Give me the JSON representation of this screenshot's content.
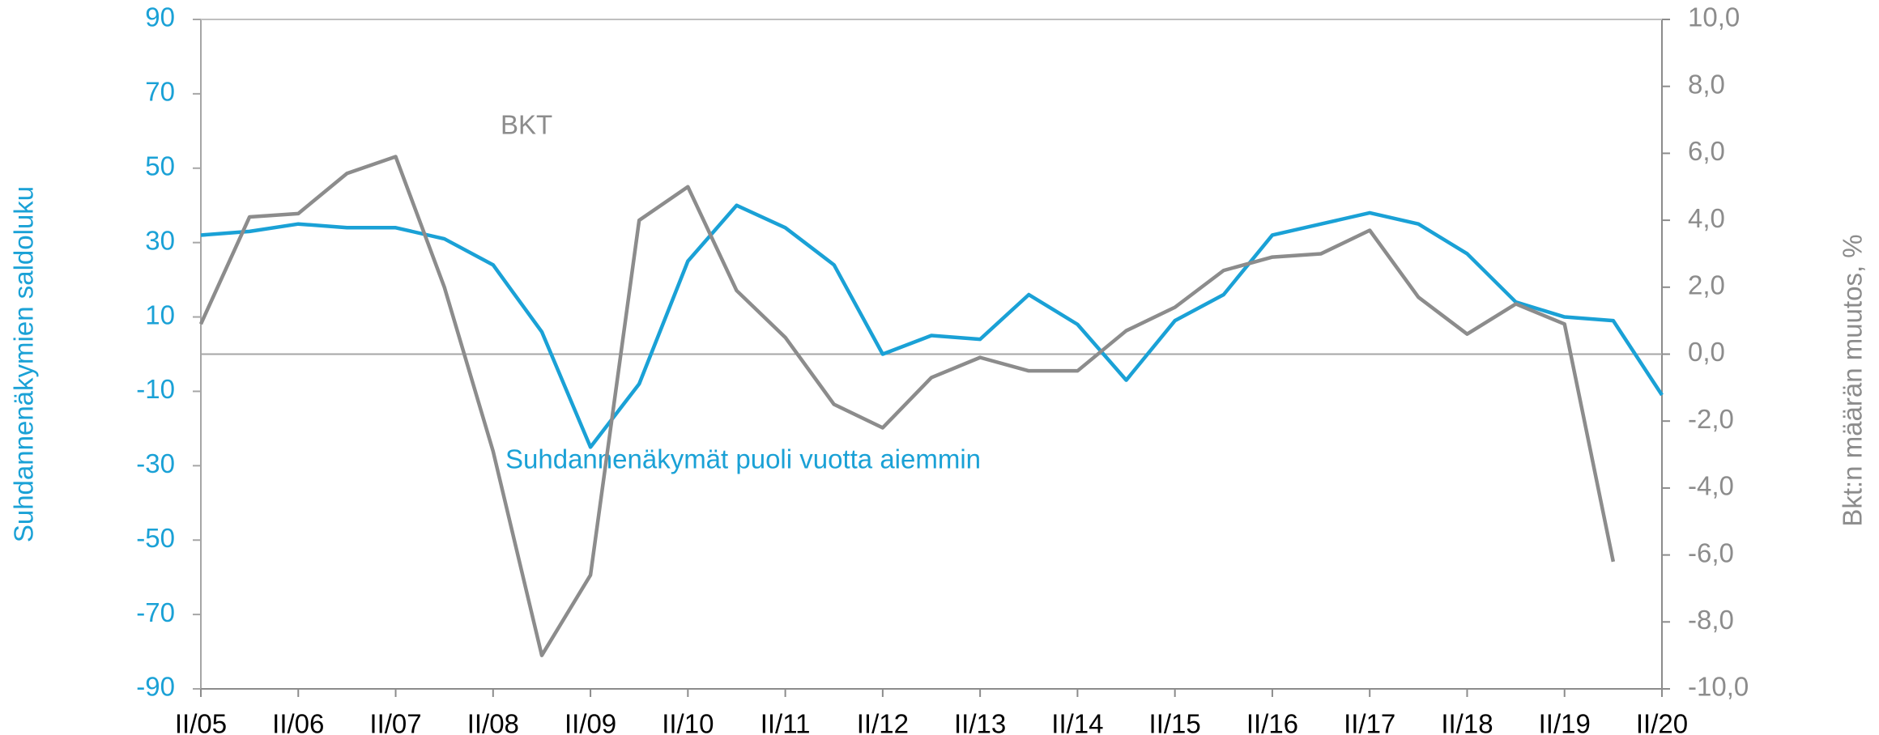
{
  "chart_data": {
    "type": "line",
    "categories": [
      "II/05",
      null,
      "II/06",
      null,
      "II/07",
      null,
      "II/08",
      null,
      "II/09",
      null,
      "II/10",
      null,
      "II/11",
      null,
      "II/12",
      null,
      "II/13",
      null,
      "II/14",
      null,
      "II/15",
      null,
      "II/16",
      null,
      "II/17",
      null,
      "II/18",
      null,
      "II/19",
      null,
      "II/20"
    ],
    "series": [
      {
        "name": "Suhdannenäkymät puoli vuotta aiemmin",
        "color": "#1aa1d6",
        "axis": "y",
        "values": [
          32,
          33,
          35,
          34,
          34,
          31,
          24,
          6,
          -25,
          -8,
          25,
          40,
          34,
          24,
          0,
          5,
          4,
          16,
          8,
          -7,
          9,
          16,
          32,
          35,
          38,
          35,
          27,
          14,
          10,
          9,
          -11
        ]
      },
      {
        "name": "BKT",
        "color": "#8c8c8c",
        "axis": "y2",
        "values": [
          0.9,
          4.1,
          4.2,
          5.4,
          5.9,
          2.0,
          -2.9,
          -9.0,
          -6.6,
          4.0,
          5.0,
          1.9,
          0.5,
          -1.5,
          -2.2,
          -0.7,
          -0.1,
          -0.5,
          -0.5,
          0.7,
          1.4,
          2.5,
          2.9,
          3.0,
          3.7,
          1.7,
          0.6,
          1.5,
          0.9,
          -6.2,
          null
        ]
      }
    ],
    "ylabel": "Suhdannenäkymien saldoluku",
    "y2label": "Bkt:n määrän muutos, %",
    "ylim": [
      -90,
      90
    ],
    "yticks": [
      -90,
      -70,
      -50,
      -30,
      -10,
      10,
      30,
      50,
      70,
      90
    ],
    "y2lim": [
      -10,
      10
    ],
    "y2ticks": [
      {
        "value": -10,
        "label": "-10,0"
      },
      {
        "value": -8,
        "label": "-8,0"
      },
      {
        "value": -6,
        "label": "-6,0"
      },
      {
        "value": -4,
        "label": "-4,0"
      },
      {
        "value": -2,
        "label": "-2,0"
      },
      {
        "value": 0,
        "label": "0,0"
      },
      {
        "value": 2,
        "label": "2,0"
      },
      {
        "value": 4,
        "label": "4,0"
      },
      {
        "value": 6,
        "label": "6,0"
      },
      {
        "value": 8,
        "label": "8,0"
      },
      {
        "value": 10,
        "label": "10,0"
      }
    ]
  }
}
